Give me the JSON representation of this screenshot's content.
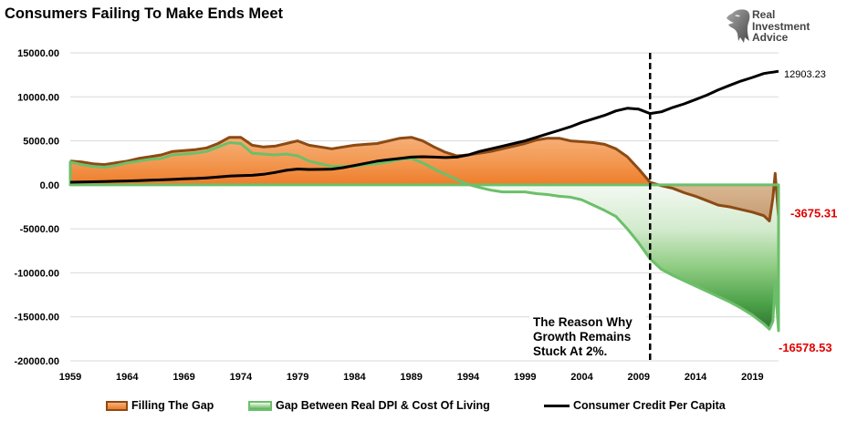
{
  "logo": {
    "line1": "Real",
    "line2": "Investment",
    "line3": "Advice"
  },
  "colors": {
    "orange_fill": "#ef7f2c",
    "brown_line": "#8c4a14",
    "green_line": "#6cbf6a",
    "black_line": "#000000",
    "end_label_red": "#e00000",
    "gridline": "#d9d9d9"
  },
  "chart_data": {
    "type": "area",
    "title": "Consumers Failing To Make Ends Meet",
    "xlabel": "",
    "ylabel": "",
    "xlim": [
      1959,
      2021.3
    ],
    "ylim": [
      -20000,
      15000
    ],
    "grid": true,
    "legend_position": "bottom",
    "x_ticks": [
      1959,
      1964,
      1969,
      1974,
      1979,
      1984,
      1989,
      1994,
      1999,
      2004,
      2009,
      2014,
      2019
    ],
    "x_tick_labels": [
      "1959",
      "1964",
      "1969",
      "1974",
      "1979",
      "1984",
      "1989",
      "1994",
      "1999",
      "2004",
      "2009",
      "2014",
      "2019"
    ],
    "y_ticks": [
      15000,
      10000,
      5000,
      0,
      -5000,
      -10000,
      -15000,
      -20000
    ],
    "y_tick_labels": [
      "15000.00",
      "10000.00",
      "5000.00",
      "0.00",
      "-5000.00",
      "-10000.00",
      "-15000.00",
      "-20000.00"
    ],
    "x": [
      1959,
      1960,
      1961,
      1962,
      1963,
      1964,
      1965,
      1966,
      1967,
      1968,
      1969,
      1970,
      1971,
      1972,
      1973,
      1974,
      1975,
      1976,
      1977,
      1978,
      1979,
      1980,
      1981,
      1982,
      1983,
      1984,
      1985,
      1986,
      1987,
      1988,
      1989,
      1990,
      1991,
      1992,
      1993,
      1994,
      1995,
      1996,
      1997,
      1998,
      1999,
      2000,
      2001,
      2002,
      2003,
      2004,
      2005,
      2006,
      2007,
      2008,
      2009,
      2010,
      2011,
      2012,
      2013,
      2014,
      2015,
      2016,
      2017,
      2018,
      2019,
      2020,
      2020.5,
      2020.8,
      2021.0,
      2021.3
    ],
    "series": [
      {
        "name": "Filling The Gap",
        "values": [
          2700,
          2600,
          2400,
          2300,
          2500,
          2700,
          3000,
          3200,
          3400,
          3800,
          3900,
          4000,
          4200,
          4700,
          5400,
          5400,
          4500,
          4300,
          4400,
          4700,
          5000,
          4500,
          4300,
          4100,
          4300,
          4500,
          4600,
          4700,
          5000,
          5300,
          5400,
          5000,
          4300,
          3700,
          3300,
          3400,
          3600,
          3800,
          4100,
          4400,
          4700,
          5100,
          5300,
          5300,
          5000,
          4900,
          4800,
          4600,
          4100,
          3200,
          1800,
          300,
          -100,
          -400,
          -900,
          -1300,
          -1800,
          -2300,
          -2500,
          -2800,
          -3100,
          -3500,
          -4100,
          -1500,
          1300,
          -3675.31
        ]
      },
      {
        "name": "Gap Between Real DPI & Cost Of Living",
        "values": [
          2600,
          2300,
          2100,
          2000,
          2200,
          2500,
          2700,
          2900,
          3000,
          3400,
          3500,
          3600,
          3800,
          4300,
          4800,
          4700,
          3600,
          3500,
          3400,
          3500,
          3300,
          2700,
          2400,
          2100,
          2100,
          2100,
          2300,
          2400,
          2600,
          2900,
          3000,
          2500,
          1800,
          1200,
          600,
          50,
          -300,
          -600,
          -800,
          -800,
          -800,
          -1000,
          -1100,
          -1300,
          -1400,
          -1700,
          -2300,
          -2900,
          -3600,
          -5000,
          -6600,
          -8400,
          -9600,
          -10300,
          -10900,
          -11500,
          -12100,
          -12700,
          -13300,
          -14000,
          -14800,
          -15800,
          -16400,
          -15500,
          -11200,
          -16578.53
        ]
      },
      {
        "name": "Consumer Credit Per Capita",
        "values": [
          300,
          330,
          350,
          380,
          410,
          440,
          480,
          520,
          560,
          620,
          680,
          720,
          790,
          890,
          1000,
          1050,
          1080,
          1200,
          1400,
          1650,
          1800,
          1750,
          1760,
          1790,
          1950,
          2200,
          2450,
          2700,
          2850,
          3000,
          3150,
          3200,
          3150,
          3100,
          3150,
          3400,
          3800,
          4100,
          4400,
          4700,
          5000,
          5400,
          5800,
          6200,
          6600,
          7100,
          7500,
          7900,
          8400,
          8700,
          8600,
          8100,
          8300,
          8800,
          9200,
          9700,
          10200,
          10800,
          11300,
          11800,
          12200,
          12650,
          12750,
          12800,
          12850,
          12903.23
        ]
      }
    ],
    "end_labels": [
      {
        "series": 2,
        "text": "12903.23",
        "color": "#000000"
      },
      {
        "series": 0,
        "text": "-3675.31",
        "color": "#e00000"
      },
      {
        "series": 1,
        "text": "-16578.53",
        "color": "#e00000"
      }
    ],
    "reference_line_year": 2010,
    "annotation_lines": [
      "The Reason Why",
      "Growth Remains",
      "Stuck At 2%."
    ]
  }
}
